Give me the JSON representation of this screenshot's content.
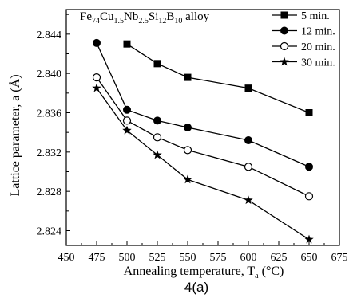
{
  "chart_data": {
    "type": "line",
    "title": [
      {
        "t": "Fe",
        "s": false
      },
      {
        "t": "74",
        "s": true
      },
      {
        "t": "Cu",
        "s": false
      },
      {
        "t": "1.5",
        "s": true
      },
      {
        "t": "Nb",
        "s": false
      },
      {
        "t": "2.5",
        "s": true
      },
      {
        "t": "Si",
        "s": false
      },
      {
        "t": "12",
        "s": true
      },
      {
        "t": "B",
        "s": false
      },
      {
        "t": "10",
        "s": true
      },
      {
        "t": " alloy",
        "s": false
      }
    ],
    "xlabel": [
      {
        "t": "Annealing temperature, T",
        "s": false
      },
      {
        "t": "a",
        "s": true
      },
      {
        "t": " (°C)",
        "s": false
      }
    ],
    "ylabel": "Lattice parameter, a  (Å)",
    "xlim": [
      450,
      675
    ],
    "ylim": [
      2.8225,
      2.8465
    ],
    "xticks": [
      450,
      475,
      500,
      525,
      550,
      575,
      600,
      625,
      650,
      675
    ],
    "yticks": [
      2.824,
      2.828,
      2.832,
      2.836,
      2.84,
      2.844
    ],
    "ytick_labels": [
      "2.824",
      "2.828",
      "2.832",
      "2.836",
      "2.840",
      "2.844"
    ],
    "grid": false,
    "legend_position": "top-right",
    "series": [
      {
        "name": "5 min.",
        "marker": "square",
        "x": [
          500,
          525,
          550,
          600,
          650
        ],
        "y": [
          2.843,
          2.841,
          2.8396,
          2.8385,
          2.836
        ]
      },
      {
        "name": "12 min.",
        "marker": "filled-circle",
        "x": [
          475,
          500,
          525,
          550,
          600,
          650
        ],
        "y": [
          2.8431,
          2.8363,
          2.8352,
          2.8345,
          2.8332,
          2.8305
        ]
      },
      {
        "name": "20 min.",
        "marker": "open-circle",
        "x": [
          475,
          500,
          525,
          550,
          600,
          650
        ],
        "y": [
          2.8396,
          2.8352,
          2.8335,
          2.8322,
          2.8305,
          2.8275
        ]
      },
      {
        "name": "30 min.",
        "marker": "star",
        "x": [
          475,
          500,
          525,
          550,
          600,
          650
        ],
        "y": [
          2.8385,
          2.8342,
          2.8317,
          2.8292,
          2.8271,
          2.8231
        ]
      }
    ]
  },
  "caption": "4(a)"
}
